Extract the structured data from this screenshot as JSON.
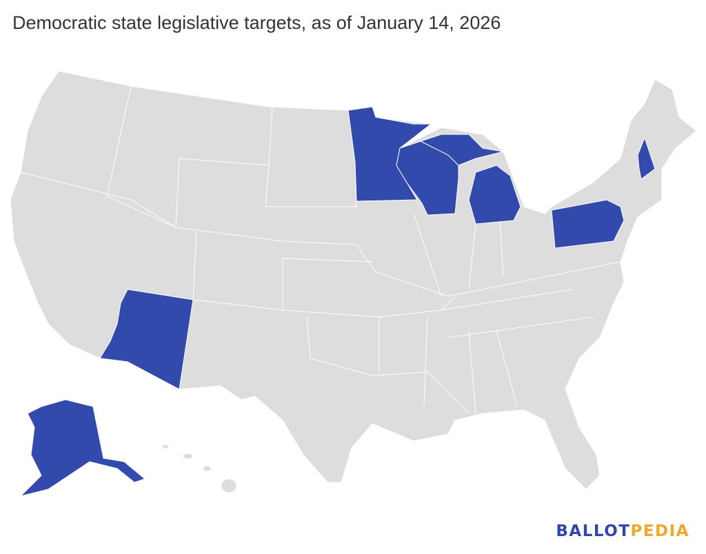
{
  "title": "Democratic state legislative targets, as of January 14, 2026",
  "colors": {
    "target": "#334aad",
    "other": "#dddddd",
    "border": "#ffffff"
  },
  "highlighted_states": [
    "Alaska",
    "Arizona",
    "Minnesota",
    "Wisconsin",
    "Michigan",
    "Pennsylvania",
    "New Hampshire"
  ],
  "logo": {
    "part1": "BALLOT",
    "part2": "PEDIA"
  }
}
